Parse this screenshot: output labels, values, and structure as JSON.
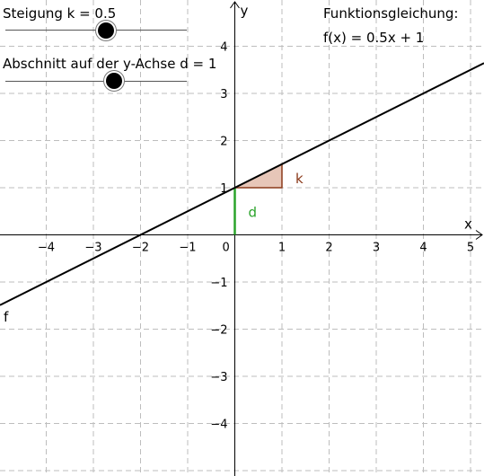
{
  "graph": {
    "x_axis_label": "x",
    "y_axis_label": "y",
    "origin_label": "0",
    "x_ticks": [
      -4,
      -3,
      -2,
      -1,
      1,
      2,
      3,
      4,
      5
    ],
    "y_ticks": [
      -4,
      -3,
      -2,
      -1,
      1,
      2,
      3,
      4
    ],
    "function_label": "f",
    "d_label": "d",
    "k_label": "k",
    "colors": {
      "line": "#000000",
      "grid": "#bdbdbd",
      "d_segment": "#2aa32a",
      "triangle_stroke": "#8b3a1a",
      "triangle_fill": "#e7c6b8",
      "k_text": "#8b3a1a"
    }
  },
  "controls": {
    "slope": {
      "label": "Steigung k = 0.5",
      "value": 0.5
    },
    "intercept": {
      "label": "Abschnitt auf der y-Achse d = 1",
      "value": 1
    }
  },
  "equation": {
    "heading": "Funktionsgleichung:",
    "text": "f(x) = 0.5x + 1"
  }
}
